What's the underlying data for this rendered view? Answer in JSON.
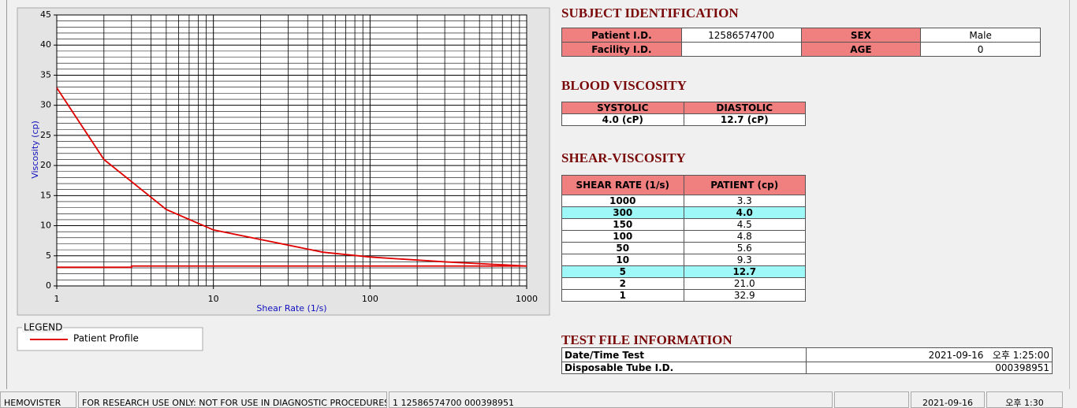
{
  "chart_data": {
    "type": "line",
    "xlabel": "Shear Rate (1/s)",
    "ylabel": "Viscosity (cp)",
    "log_x": true,
    "grid": true,
    "xlim": [
      1,
      1000
    ],
    "ylim": [
      0,
      45
    ],
    "xticks": [
      1,
      10,
      100,
      1000
    ],
    "yticks": [
      0,
      5,
      10,
      15,
      20,
      25,
      30,
      35,
      40,
      45
    ],
    "legend_title": "LEGEND",
    "series": [
      {
        "name": "Patient Profile",
        "color": "#e00000",
        "x": [
          1,
          2,
          5,
          10,
          50,
          100,
          150,
          300,
          1000
        ],
        "values": [
          32.9,
          21.0,
          12.7,
          9.3,
          5.6,
          4.8,
          4.5,
          4.0,
          3.3
        ]
      },
      {
        "color": "#e00000",
        "x": [
          1,
          3,
          3,
          1000
        ],
        "values": [
          3.1,
          3.1,
          3.3,
          3.3
        ]
      }
    ]
  },
  "subject": {
    "title": "SUBJECT IDENTIFICATION",
    "rows": [
      [
        {
          "label": "Patient I.D.",
          "value": "12586574700"
        },
        {
          "label": "SEX",
          "value": "Male"
        }
      ],
      [
        {
          "label": "Facility I.D."
        },
        {
          "label": "AGE",
          "value": 0
        }
      ]
    ]
  },
  "blood_viscosity": {
    "title": "BLOOD VISCOSITY",
    "headers": [
      "SYSTOLIC",
      "DIASTOLIC"
    ],
    "values": [
      "4.0 (cP)",
      "12.7 (cP)"
    ]
  },
  "shear_viscosity": {
    "title": "SHEAR-VISCOSITY",
    "headers": [
      "SHEAR RATE (1/s)",
      "PATIENT (cp)"
    ],
    "rows": [
      {
        "rate": 1000,
        "value": "3.3"
      },
      {
        "rate": 300,
        "value": "4.0",
        "highlight": true
      },
      {
        "rate": 150,
        "value": "4.5"
      },
      {
        "rate": 100,
        "value": "4.8"
      },
      {
        "rate": 50,
        "value": "5.6"
      },
      {
        "rate": 10,
        "value": "9.3"
      },
      {
        "rate": 5,
        "value": "12.7",
        "highlight": true
      },
      {
        "rate": 2,
        "value": "21.0"
      },
      {
        "rate": 1,
        "value": "32.9"
      }
    ]
  },
  "test_file": {
    "title": "TEST FILE INFORMATION",
    "rows": [
      {
        "label": "Date/Time Test",
        "value": "2021-09-16   오후 1:25:00"
      },
      {
        "label": "Disposable Tube I.D.",
        "value": "000398951"
      }
    ]
  },
  "status_bar": [
    "HEMOVISTER",
    "FOR RESEARCH USE ONLY: NOT FOR USE IN DIAGNOSTIC PROCEDURES",
    "1  12586574700  000398951",
    "2021-09-16",
    "오후 1:30"
  ]
}
